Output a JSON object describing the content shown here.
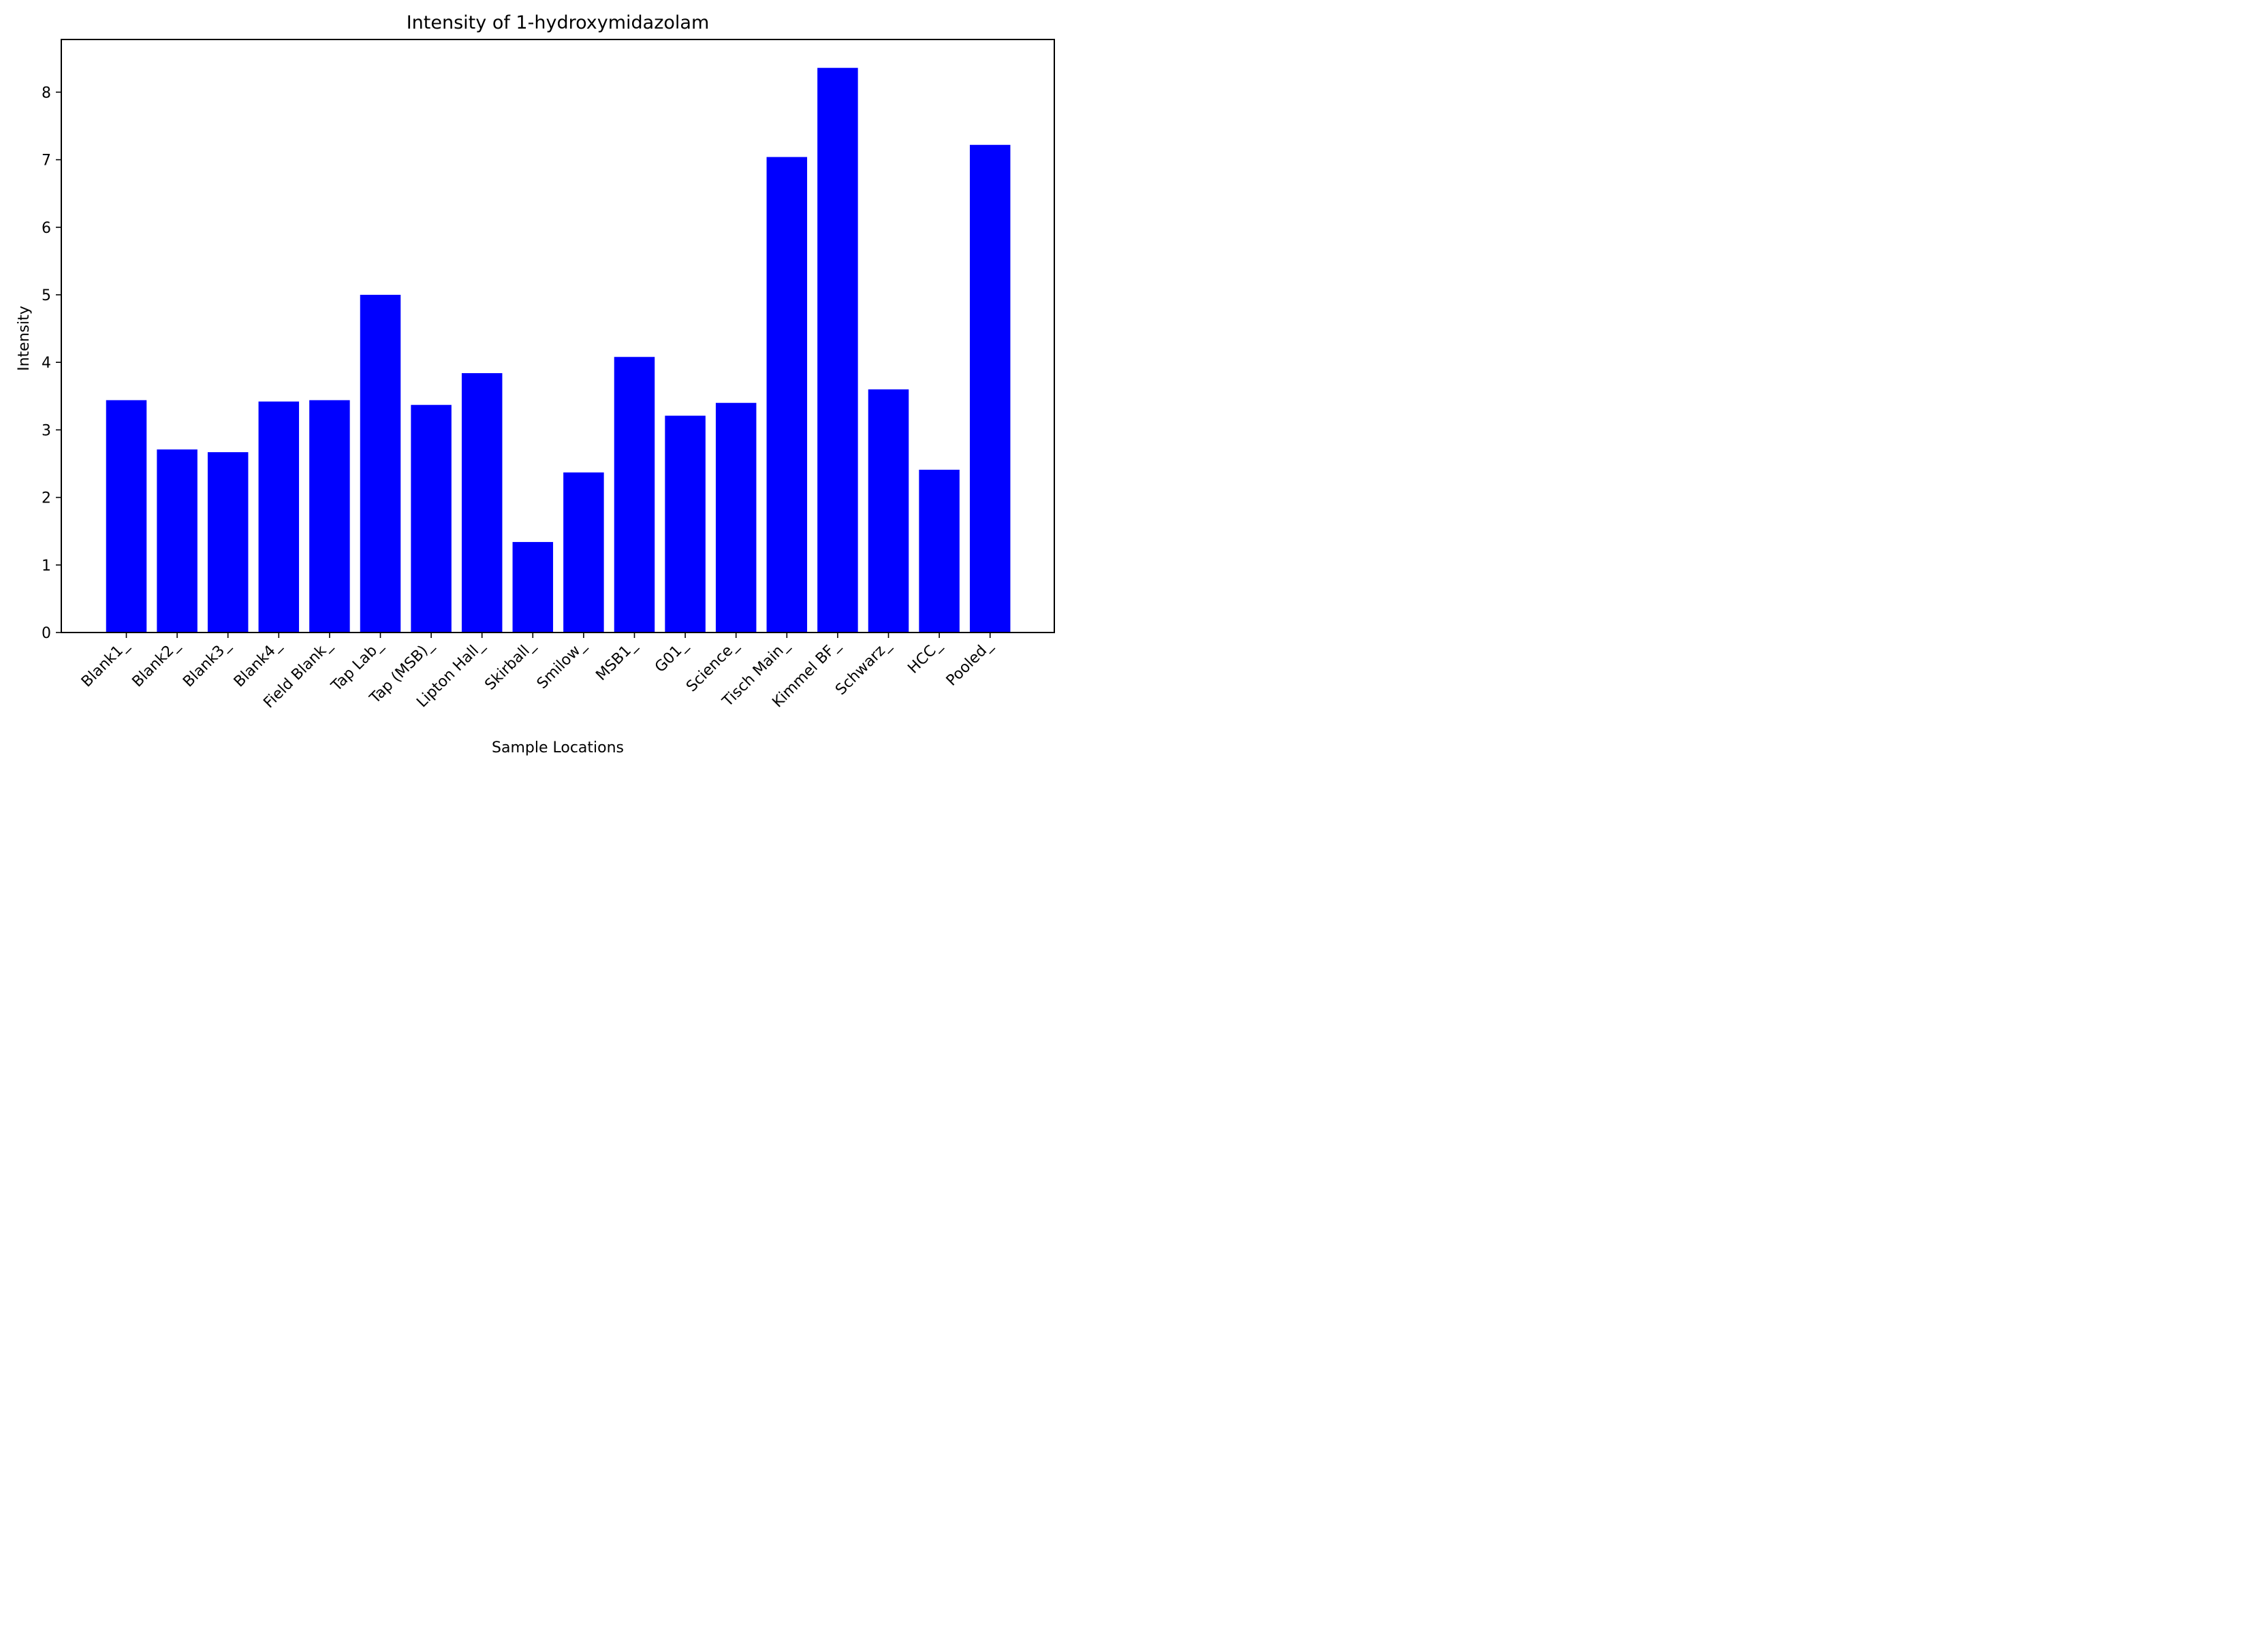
{
  "chart_data": {
    "type": "bar",
    "title": "Intensity of 1-hydroxymidazolam",
    "xlabel": "Sample Locations",
    "ylabel": "Intensity",
    "categories": [
      "Blank1_",
      "Blank2_",
      "Blank3_",
      "Blank4_",
      "Field Blank_",
      "Tap Lab_",
      "Tap (MSB)_",
      "Lipton Hall_",
      "Skirball_",
      "Smilow_",
      "MSB1_",
      "G01_",
      "Science_",
      "Tisch Main_",
      "Kimmel BF_",
      "Schwarz_",
      "HCC_",
      "Pooled_"
    ],
    "values": [
      3.44,
      2.71,
      2.67,
      3.42,
      3.44,
      5.0,
      3.37,
      3.84,
      1.34,
      2.37,
      4.08,
      3.21,
      3.4,
      7.04,
      8.36,
      3.6,
      2.41,
      7.22
    ],
    "yticks": [
      "0",
      "1",
      "2",
      "3",
      "4",
      "5",
      "6",
      "7",
      "8"
    ],
    "ylim": [
      0,
      8.78
    ],
    "bar_color": "#0000ff",
    "grid": false,
    "legend": "none"
  }
}
